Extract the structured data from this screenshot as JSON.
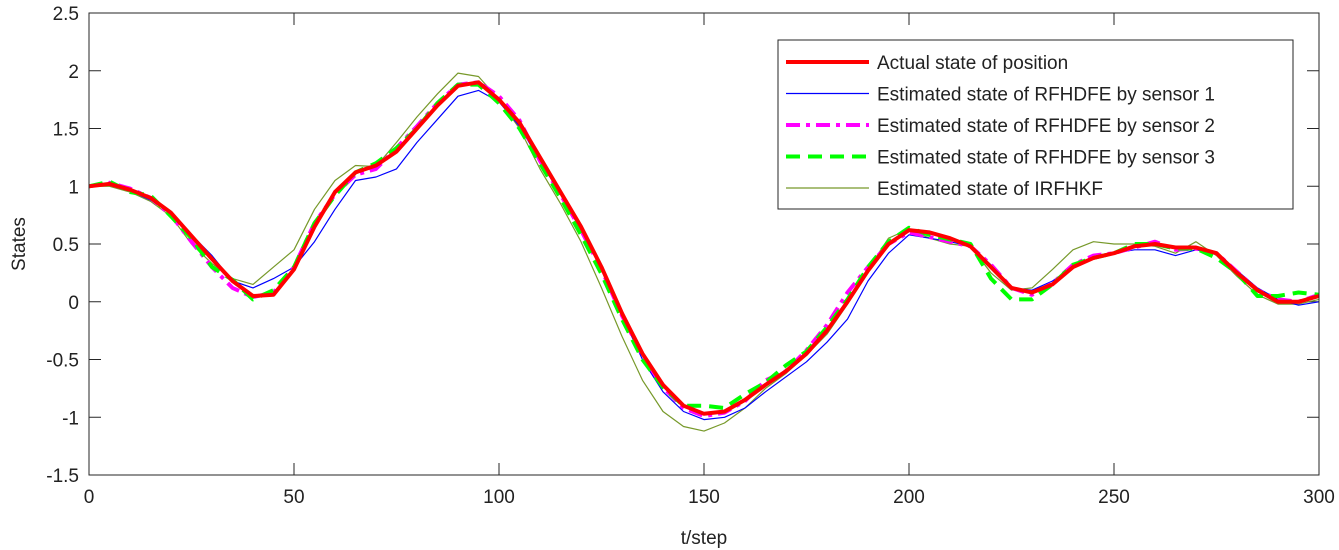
{
  "chart_data": {
    "type": "line",
    "title": "",
    "xlabel": "t/step",
    "ylabel": "States",
    "xlim": [
      0,
      300
    ],
    "ylim": [
      -1.5,
      2.5
    ],
    "xticks": [
      "0",
      "50",
      "100",
      "150",
      "200",
      "250",
      "300"
    ],
    "yticks": [
      "-1.5",
      "-1",
      "-0.5",
      "0",
      "0.5",
      "1",
      "1.5",
      "2",
      "2.5"
    ],
    "grid": false,
    "legend_position": "top-right",
    "x": [
      0,
      5,
      10,
      15,
      20,
      25,
      30,
      35,
      40,
      45,
      50,
      55,
      60,
      65,
      70,
      75,
      80,
      85,
      90,
      95,
      100,
      105,
      110,
      115,
      120,
      125,
      130,
      135,
      140,
      145,
      150,
      155,
      160,
      165,
      170,
      175,
      180,
      185,
      190,
      195,
      200,
      205,
      210,
      215,
      220,
      225,
      230,
      235,
      240,
      245,
      250,
      255,
      260,
      265,
      270,
      275,
      280,
      285,
      290,
      295,
      300
    ],
    "series": [
      {
        "name": "Actual state of position",
        "color": "#ff0000",
        "style": "solid-thick",
        "values": [
          1.0,
          1.02,
          0.97,
          0.9,
          0.77,
          0.57,
          0.37,
          0.18,
          0.05,
          0.06,
          0.28,
          0.65,
          0.95,
          1.12,
          1.18,
          1.3,
          1.5,
          1.7,
          1.87,
          1.9,
          1.75,
          1.55,
          1.25,
          0.95,
          0.65,
          0.3,
          -0.1,
          -0.45,
          -0.72,
          -0.9,
          -0.97,
          -0.95,
          -0.85,
          -0.72,
          -0.6,
          -0.45,
          -0.25,
          0.0,
          0.27,
          0.5,
          0.62,
          0.6,
          0.55,
          0.48,
          0.3,
          0.12,
          0.08,
          0.15,
          0.3,
          0.38,
          0.42,
          0.48,
          0.5,
          0.47,
          0.47,
          0.42,
          0.25,
          0.1,
          0.0,
          0.0,
          0.05
        ]
      },
      {
        "name": "Estimated state of RFHDFE by sensor 1",
        "color": "#0000ff",
        "style": "solid-thin",
        "values": [
          1.0,
          1.01,
          0.96,
          0.88,
          0.78,
          0.58,
          0.4,
          0.18,
          0.12,
          0.2,
          0.3,
          0.52,
          0.8,
          1.05,
          1.08,
          1.15,
          1.38,
          1.58,
          1.78,
          1.83,
          1.73,
          1.52,
          1.22,
          0.93,
          0.62,
          0.28,
          -0.12,
          -0.5,
          -0.78,
          -0.95,
          -1.02,
          -1.0,
          -0.92,
          -0.78,
          -0.65,
          -0.52,
          -0.35,
          -0.15,
          0.18,
          0.42,
          0.58,
          0.55,
          0.52,
          0.48,
          0.32,
          0.12,
          0.1,
          0.18,
          0.3,
          0.38,
          0.42,
          0.45,
          0.45,
          0.4,
          0.45,
          0.42,
          0.27,
          0.12,
          0.02,
          -0.03,
          0.0
        ]
      },
      {
        "name": "Estimated state of RFHDFE by sensor 2",
        "color": "#ff00ff",
        "style": "dashdot",
        "values": [
          1.0,
          1.03,
          0.98,
          0.9,
          0.75,
          0.52,
          0.3,
          0.12,
          0.04,
          0.08,
          0.3,
          0.68,
          0.93,
          1.1,
          1.15,
          1.33,
          1.52,
          1.72,
          1.88,
          1.9,
          1.78,
          1.57,
          1.22,
          0.93,
          0.62,
          0.28,
          -0.12,
          -0.46,
          -0.74,
          -0.92,
          -0.99,
          -0.96,
          -0.86,
          -0.68,
          -0.6,
          -0.42,
          -0.2,
          0.08,
          0.3,
          0.5,
          0.6,
          0.56,
          0.52,
          0.48,
          0.32,
          0.12,
          0.06,
          0.16,
          0.32,
          0.4,
          0.42,
          0.47,
          0.52,
          0.45,
          0.46,
          0.42,
          0.26,
          0.1,
          0.02,
          0.0,
          0.06
        ]
      },
      {
        "name": "Estimated state of RFHDFE by sensor 3",
        "color": "#00ff00",
        "style": "dashed",
        "values": [
          1.0,
          1.04,
          0.95,
          0.92,
          0.74,
          0.55,
          0.3,
          0.19,
          0.02,
          0.1,
          0.3,
          0.68,
          0.92,
          1.12,
          1.2,
          1.33,
          1.5,
          1.72,
          1.88,
          1.88,
          1.72,
          1.5,
          1.2,
          0.9,
          0.58,
          0.24,
          -0.15,
          -0.5,
          -0.74,
          -0.9,
          -0.9,
          -0.92,
          -0.8,
          -0.7,
          -0.55,
          -0.43,
          -0.22,
          0.02,
          0.3,
          0.52,
          0.64,
          0.58,
          0.54,
          0.5,
          0.2,
          0.02,
          0.02,
          0.15,
          0.32,
          0.38,
          0.42,
          0.5,
          0.5,
          0.46,
          0.46,
          0.38,
          0.25,
          0.05,
          0.05,
          0.08,
          0.06
        ]
      },
      {
        "name": "Estimated state of IRFHKF",
        "color": "#77992a",
        "style": "solid-thin",
        "values": [
          1.0,
          1.0,
          0.95,
          0.87,
          0.74,
          0.5,
          0.33,
          0.2,
          0.15,
          0.3,
          0.45,
          0.8,
          1.05,
          1.18,
          1.17,
          1.38,
          1.6,
          1.8,
          1.98,
          1.95,
          1.75,
          1.5,
          1.15,
          0.85,
          0.52,
          0.12,
          -0.3,
          -0.68,
          -0.95,
          -1.08,
          -1.12,
          -1.05,
          -0.92,
          -0.75,
          -0.62,
          -0.46,
          -0.28,
          -0.02,
          0.28,
          0.55,
          0.63,
          0.55,
          0.5,
          0.48,
          0.25,
          0.1,
          0.12,
          0.28,
          0.45,
          0.52,
          0.5,
          0.5,
          0.48,
          0.42,
          0.52,
          0.4,
          0.22,
          0.06,
          -0.02,
          -0.02,
          0.02
        ]
      }
    ]
  }
}
